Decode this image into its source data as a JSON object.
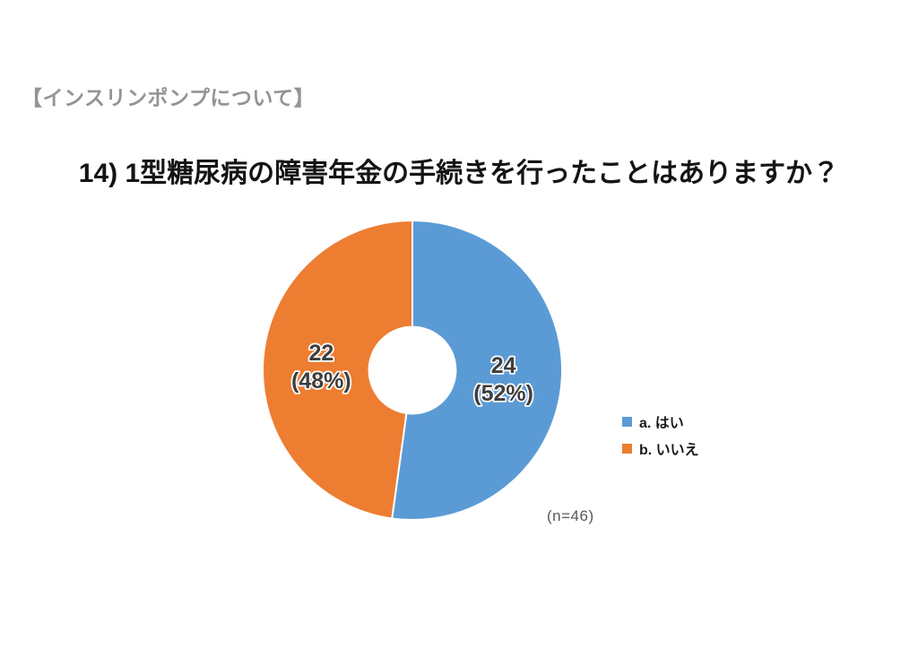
{
  "page": {
    "background": "#ffffff"
  },
  "section_header": {
    "text": "【インスリンポンプについて】",
    "color": "#949494"
  },
  "chart_data": {
    "type": "pie",
    "subtype": "donut",
    "title": "14) 1型糖尿病の障害年金の手続きを行ったことはありますか？",
    "categories": [
      "a. はい",
      "b. いいえ"
    ],
    "values": [
      24,
      22
    ],
    "percentages": [
      52,
      48
    ],
    "value_labels": [
      [
        "24",
        "(52%)"
      ],
      [
        "22",
        "(48%)"
      ]
    ],
    "n_label": "(n=46)",
    "colors": [
      "#5B9BD5",
      "#ED7D31"
    ],
    "label_color": "#3F3F3F",
    "slice_border_color": "#FFFFFF",
    "legend_position": "right",
    "start_angle_deg": 0,
    "clockwise": true,
    "donut_hole_ratio": 0.29,
    "label_radius_ratio": 0.61
  }
}
